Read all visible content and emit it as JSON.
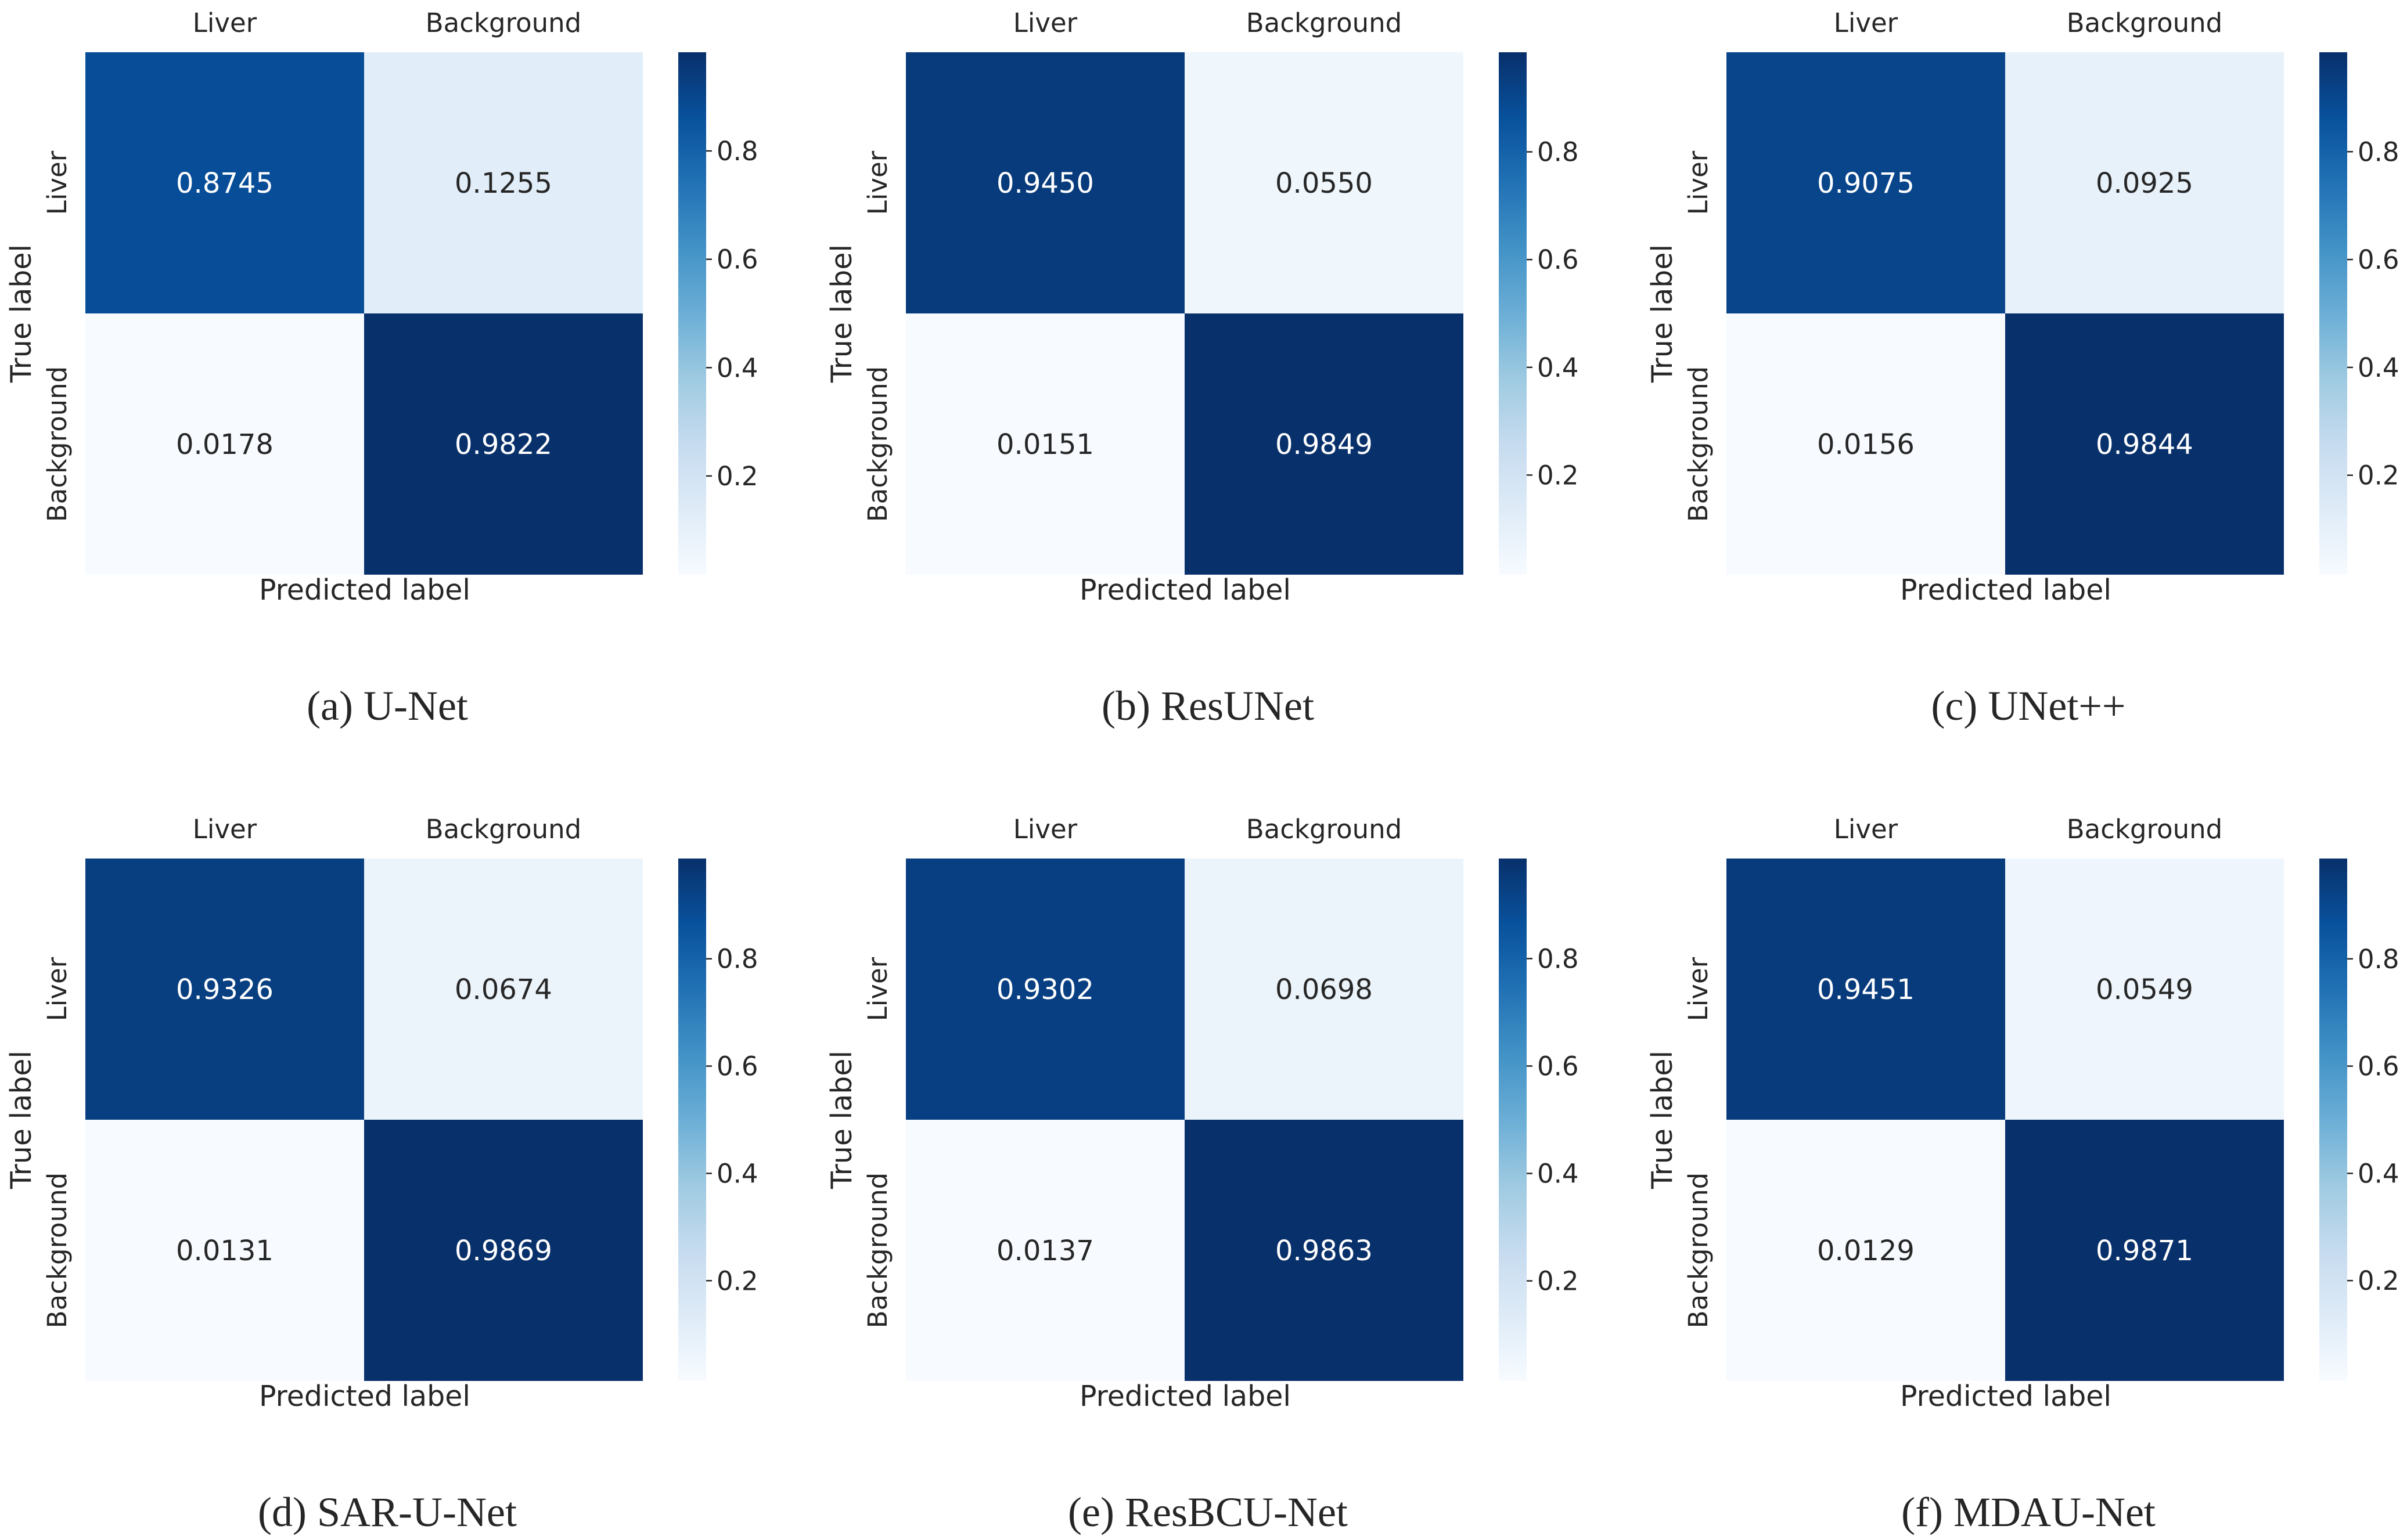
{
  "chart_data": [
    {
      "type": "heatmap",
      "caption": "(a) U-Net",
      "x_categories": [
        "Liver",
        "Background"
      ],
      "y_categories": [
        "Liver",
        "Background"
      ],
      "xlabel": "Predicted label",
      "ylabel": "True label",
      "values": [
        [
          0.8745,
          0.1255
        ],
        [
          0.0178,
          0.9822
        ]
      ],
      "colorbar": {
        "ticks": [
          "0.2",
          "0.4",
          "0.6",
          "0.8"
        ],
        "range": [
          0.0178,
          0.9822
        ]
      },
      "colormap": "Blues"
    },
    {
      "type": "heatmap",
      "caption": "(b) ResUNet",
      "x_categories": [
        "Liver",
        "Background"
      ],
      "y_categories": [
        "Liver",
        "Background"
      ],
      "xlabel": "Predicted label",
      "ylabel": "True label",
      "values": [
        [
          0.945,
          0.055
        ],
        [
          0.0151,
          0.9849
        ]
      ],
      "colorbar": {
        "ticks": [
          "0.2",
          "0.4",
          "0.6",
          "0.8"
        ],
        "range": [
          0.0151,
          0.9849
        ]
      },
      "colormap": "Blues"
    },
    {
      "type": "heatmap",
      "caption": "(c) UNet++",
      "x_categories": [
        "Liver",
        "Background"
      ],
      "y_categories": [
        "Liver",
        "Background"
      ],
      "xlabel": "Predicted label",
      "ylabel": "True label",
      "values": [
        [
          0.9075,
          0.0925
        ],
        [
          0.0156,
          0.9844
        ]
      ],
      "colorbar": {
        "ticks": [
          "0.2",
          "0.4",
          "0.6",
          "0.8"
        ],
        "range": [
          0.0156,
          0.9844
        ]
      },
      "colormap": "Blues"
    },
    {
      "type": "heatmap",
      "caption": "(d) SAR-U-Net",
      "x_categories": [
        "Liver",
        "Background"
      ],
      "y_categories": [
        "Liver",
        "Background"
      ],
      "xlabel": "Predicted label",
      "ylabel": "True label",
      "values": [
        [
          0.9326,
          0.0674
        ],
        [
          0.0131,
          0.9869
        ]
      ],
      "colorbar": {
        "ticks": [
          "0.2",
          "0.4",
          "0.6",
          "0.8"
        ],
        "range": [
          0.0131,
          0.9869
        ]
      },
      "colormap": "Blues"
    },
    {
      "type": "heatmap",
      "caption": "(e) ResBCU-Net",
      "x_categories": [
        "Liver",
        "Background"
      ],
      "y_categories": [
        "Liver",
        "Background"
      ],
      "xlabel": "Predicted label",
      "ylabel": "True label",
      "values": [
        [
          0.9302,
          0.0698
        ],
        [
          0.0137,
          0.9863
        ]
      ],
      "colorbar": {
        "ticks": [
          "0.2",
          "0.4",
          "0.6",
          "0.8"
        ],
        "range": [
          0.0137,
          0.9863
        ]
      },
      "colormap": "Blues"
    },
    {
      "type": "heatmap",
      "caption": "(f) MDAU-Net",
      "x_categories": [
        "Liver",
        "Background"
      ],
      "y_categories": [
        "Liver",
        "Background"
      ],
      "xlabel": "Predicted label",
      "ylabel": "True label",
      "values": [
        [
          0.9451,
          0.0549
        ],
        [
          0.0129,
          0.9871
        ]
      ],
      "colorbar": {
        "ticks": [
          "0.2",
          "0.4",
          "0.6",
          "0.8"
        ],
        "range": [
          0.0129,
          0.9871
        ]
      },
      "colormap": "Blues"
    }
  ]
}
